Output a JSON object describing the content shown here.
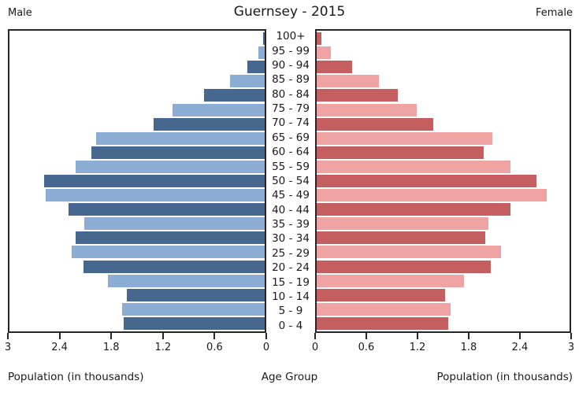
{
  "title": "Guernsey - 2015",
  "left_header": "Male",
  "right_header": "Female",
  "axis": {
    "left_ticks": [
      "3",
      "2.4",
      "1.8",
      "1.2",
      "0.6",
      "0"
    ],
    "right_ticks": [
      "0",
      "0.6",
      "1.2",
      "1.8",
      "2.4",
      "3"
    ],
    "left_label": "Population (in thousands)",
    "center_label": "Age Group",
    "right_label": "Population (in thousands)"
  },
  "colors": {
    "male_dark": "#46688f",
    "male_light": "#8badd3",
    "female_dark": "#c55f5f",
    "female_light": "#f0a3a3",
    "axis_line": "#262626"
  },
  "chart_data": {
    "type": "bar",
    "subtype": "population-pyramid",
    "title": "Guernsey - 2015",
    "xlabel_left": "Population (in thousands)",
    "xlabel_right": "Population (in thousands)",
    "ylabel": "Age Group",
    "xlim": [
      0,
      3
    ],
    "grid": false,
    "legend_position": "none",
    "categories_top_to_bottom": [
      "100+",
      "95 - 99",
      "90 - 94",
      "85 - 89",
      "80 - 84",
      "75 - 79",
      "70 - 74",
      "65 - 69",
      "60 - 64",
      "55 - 59",
      "50 - 54",
      "45 - 49",
      "40 - 44",
      "35 - 39",
      "30 - 34",
      "25 - 29",
      "20 - 24",
      "15 - 19",
      "10 - 14",
      "5 - 9",
      "0 - 4"
    ],
    "series": [
      {
        "name": "Male",
        "values": [
          0.02,
          0.07,
          0.2,
          0.41,
          0.71,
          1.08,
          1.31,
          1.98,
          2.04,
          2.22,
          2.59,
          2.57,
          2.31,
          2.12,
          2.22,
          2.27,
          2.13,
          1.84,
          1.62,
          1.68,
          1.66
        ]
      },
      {
        "name": "Female",
        "values": [
          0.06,
          0.17,
          0.42,
          0.74,
          0.96,
          1.19,
          1.38,
          2.08,
          1.98,
          2.3,
          2.61,
          2.73,
          2.3,
          2.04,
          2.0,
          2.19,
          2.07,
          1.75,
          1.52,
          1.59,
          1.56
        ]
      }
    ]
  }
}
